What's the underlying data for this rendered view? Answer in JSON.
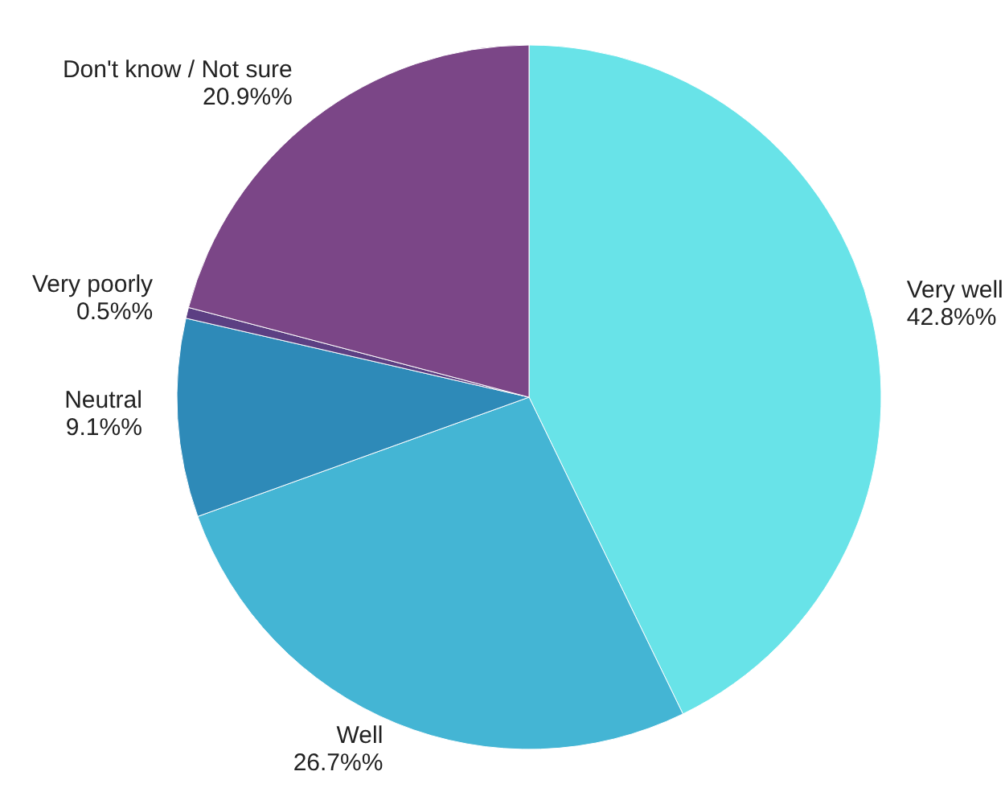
{
  "chart_data": {
    "type": "pie",
    "categories": [
      "Very well",
      "Well",
      "Neutral",
      "Very poorly",
      "Don't know / Not sure"
    ],
    "values": [
      42.8,
      26.7,
      9.1,
      0.5,
      20.9
    ],
    "value_labels": [
      "42.8%%",
      "26.7%%",
      "9.1%%",
      "0.5%%",
      "20.9%%"
    ],
    "colors": [
      "#68e3e8",
      "#44b5d4",
      "#2e8ab8",
      "#5c3f83",
      "#7b4687"
    ],
    "legend": false
  }
}
